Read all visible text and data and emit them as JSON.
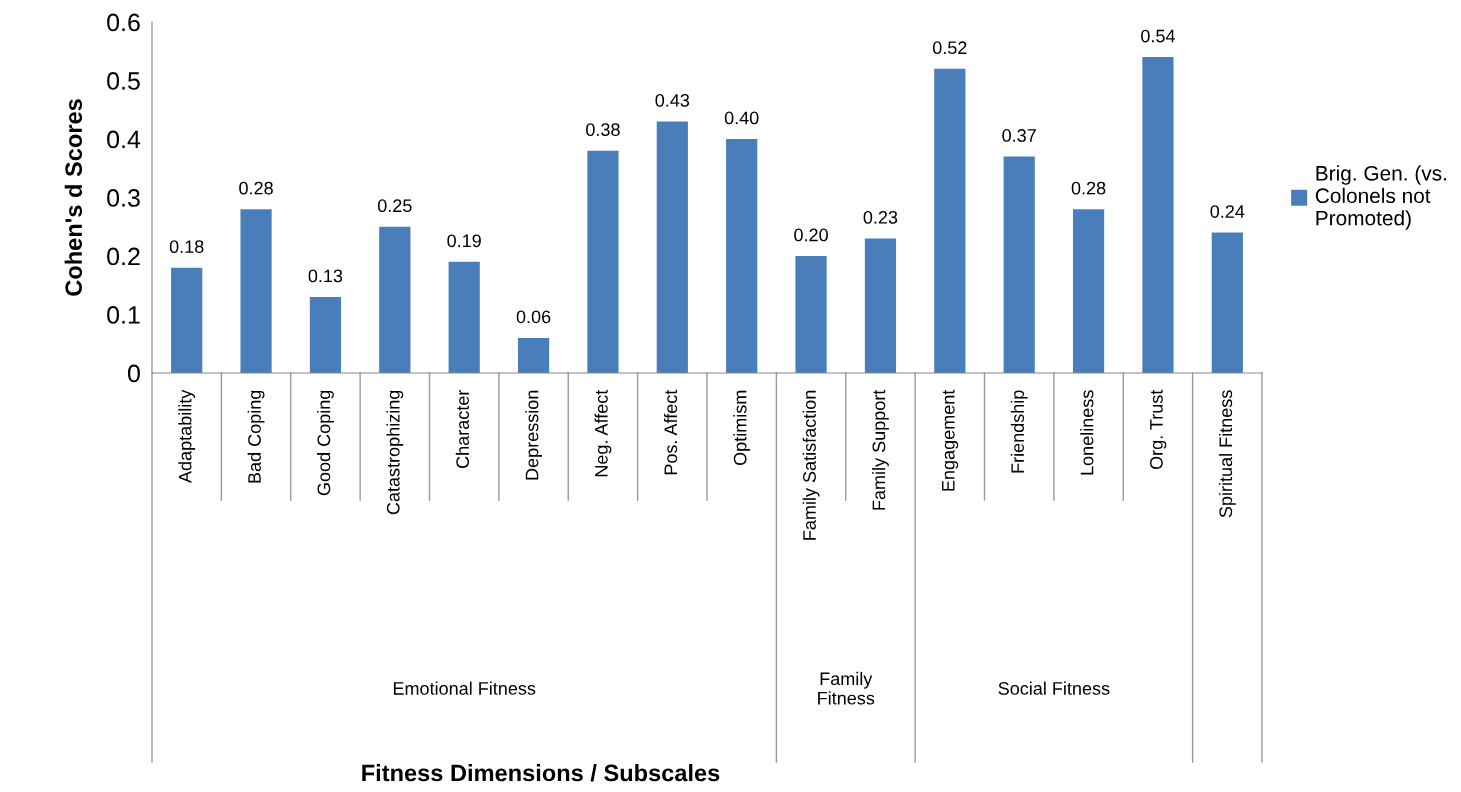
{
  "chart_data": {
    "type": "bar",
    "ylabel": "Cohen's d Scores",
    "categories": [
      "Adaptability",
      "Bad Coping",
      "Good Coping",
      "Catastrophizing",
      "Character",
      "Depression",
      "Neg. Affect",
      "Pos. Affect",
      "Optimism",
      "Family Satisfaction",
      "Family Support",
      "Engagement",
      "Friendship",
      "Loneliness",
      "Org. Trust",
      "Spiritual Fitness"
    ],
    "series": [
      {
        "name": "Brig. Gen. (vs.\nColonels not\nPromoted)",
        "color": "#4a7ebb",
        "values": [
          0.18,
          0.28,
          0.13,
          0.25,
          0.19,
          0.06,
          0.38,
          0.43,
          0.4,
          0.2,
          0.23,
          0.52,
          0.37,
          0.28,
          0.54,
          0.24
        ],
        "value_labels": [
          "0.18",
          "0.28",
          "0.13",
          "0.25",
          "0.19",
          "0.06",
          "0.38",
          "0.43",
          "0.40",
          "0.20",
          "0.23",
          "0.52",
          "0.37",
          "0.28",
          "0.54",
          "0.24"
        ]
      }
    ],
    "annotations": [
      "Emotional Fitness",
      "Family\nFitness",
      "Social Fitness",
      "Fitness Dimensions / Subscales"
    ],
    "ylim": [
      0,
      0.6
    ],
    "yticks": [
      0,
      0.1,
      0.2,
      0.3,
      0.4,
      0.5,
      0.6
    ],
    "grid": false,
    "legend": "right"
  }
}
